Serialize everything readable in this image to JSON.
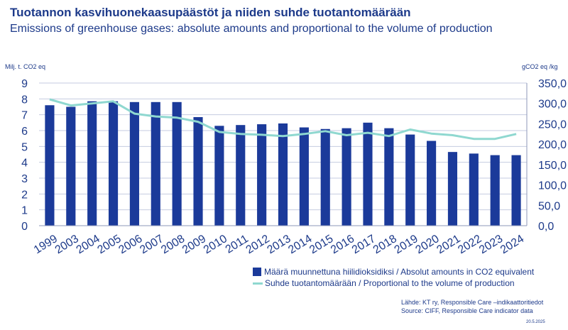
{
  "header": {
    "title": "Tuotannon kasvihuonekaasupäästöt ja niiden suhde tuotantomäärään",
    "subtitle": "Emissions of greenhouse gases: absolute amounts and proportional to the volume of production"
  },
  "axes": {
    "left_unit": "Milj. t. CO2 eq",
    "right_unit": "gCO2 eq /kg"
  },
  "legend": {
    "bars": "Määrä muunnettuna hiilidioksidiksi / Absolut amounts in CO2 equivalent",
    "line": "Suhde tuotantomäärään / Proportional to the volume of production"
  },
  "footer": {
    "source_fi": "Lähde: KT ry, Responsible Care –indikaattoritiedot",
    "source_en": "Source: CIFF, Responsible Care indicator data",
    "date": "20.5.2025"
  },
  "colors": {
    "bars": "#1b3a9a",
    "line": "#8fd8d0",
    "grid": "#c5cbe0",
    "text": "#1d3a8a"
  },
  "chart_data": {
    "type": "bar",
    "categories": [
      "1999",
      "2003",
      "2004",
      "2005",
      "2006",
      "2007",
      "2008",
      "2009",
      "2010",
      "2011",
      "2012",
      "2013",
      "2014",
      "2015",
      "2016",
      "2017",
      "2018",
      "2019",
      "2020",
      "2021",
      "2022",
      "2023",
      "2024"
    ],
    "series": [
      {
        "name": "Määrä muunnettuna hiilidioksidiksi / Absolut amounts in CO2 equivalent",
        "type": "bar",
        "axis": "left",
        "values": [
          7.6,
          7.5,
          7.85,
          7.85,
          7.8,
          7.8,
          7.8,
          6.85,
          6.3,
          6.35,
          6.4,
          6.45,
          6.2,
          6.1,
          6.15,
          6.5,
          6.15,
          5.75,
          5.35,
          4.65,
          4.55,
          4.45,
          4.45
        ]
      },
      {
        "name": "Suhde tuotantomäärään / Proportional to the volume of production",
        "type": "line",
        "axis": "right",
        "values": [
          310,
          295,
          300,
          305,
          275,
          268,
          265,
          255,
          230,
          225,
          223,
          220,
          225,
          232,
          222,
          228,
          220,
          236,
          226,
          222,
          213,
          213,
          225
        ]
      }
    ],
    "y_left": {
      "min": 0,
      "max": 9,
      "ticks": [
        "0",
        "1",
        "2",
        "3",
        "4",
        "5",
        "6",
        "7",
        "8",
        "9"
      ]
    },
    "y_right": {
      "min": 0,
      "max": 350,
      "ticks": [
        "0,0",
        "50,0",
        "100,0",
        "150,0",
        "200,0",
        "250,0",
        "300,0",
        "350,0"
      ]
    },
    "grid": true,
    "legend_position": "bottom-right"
  }
}
